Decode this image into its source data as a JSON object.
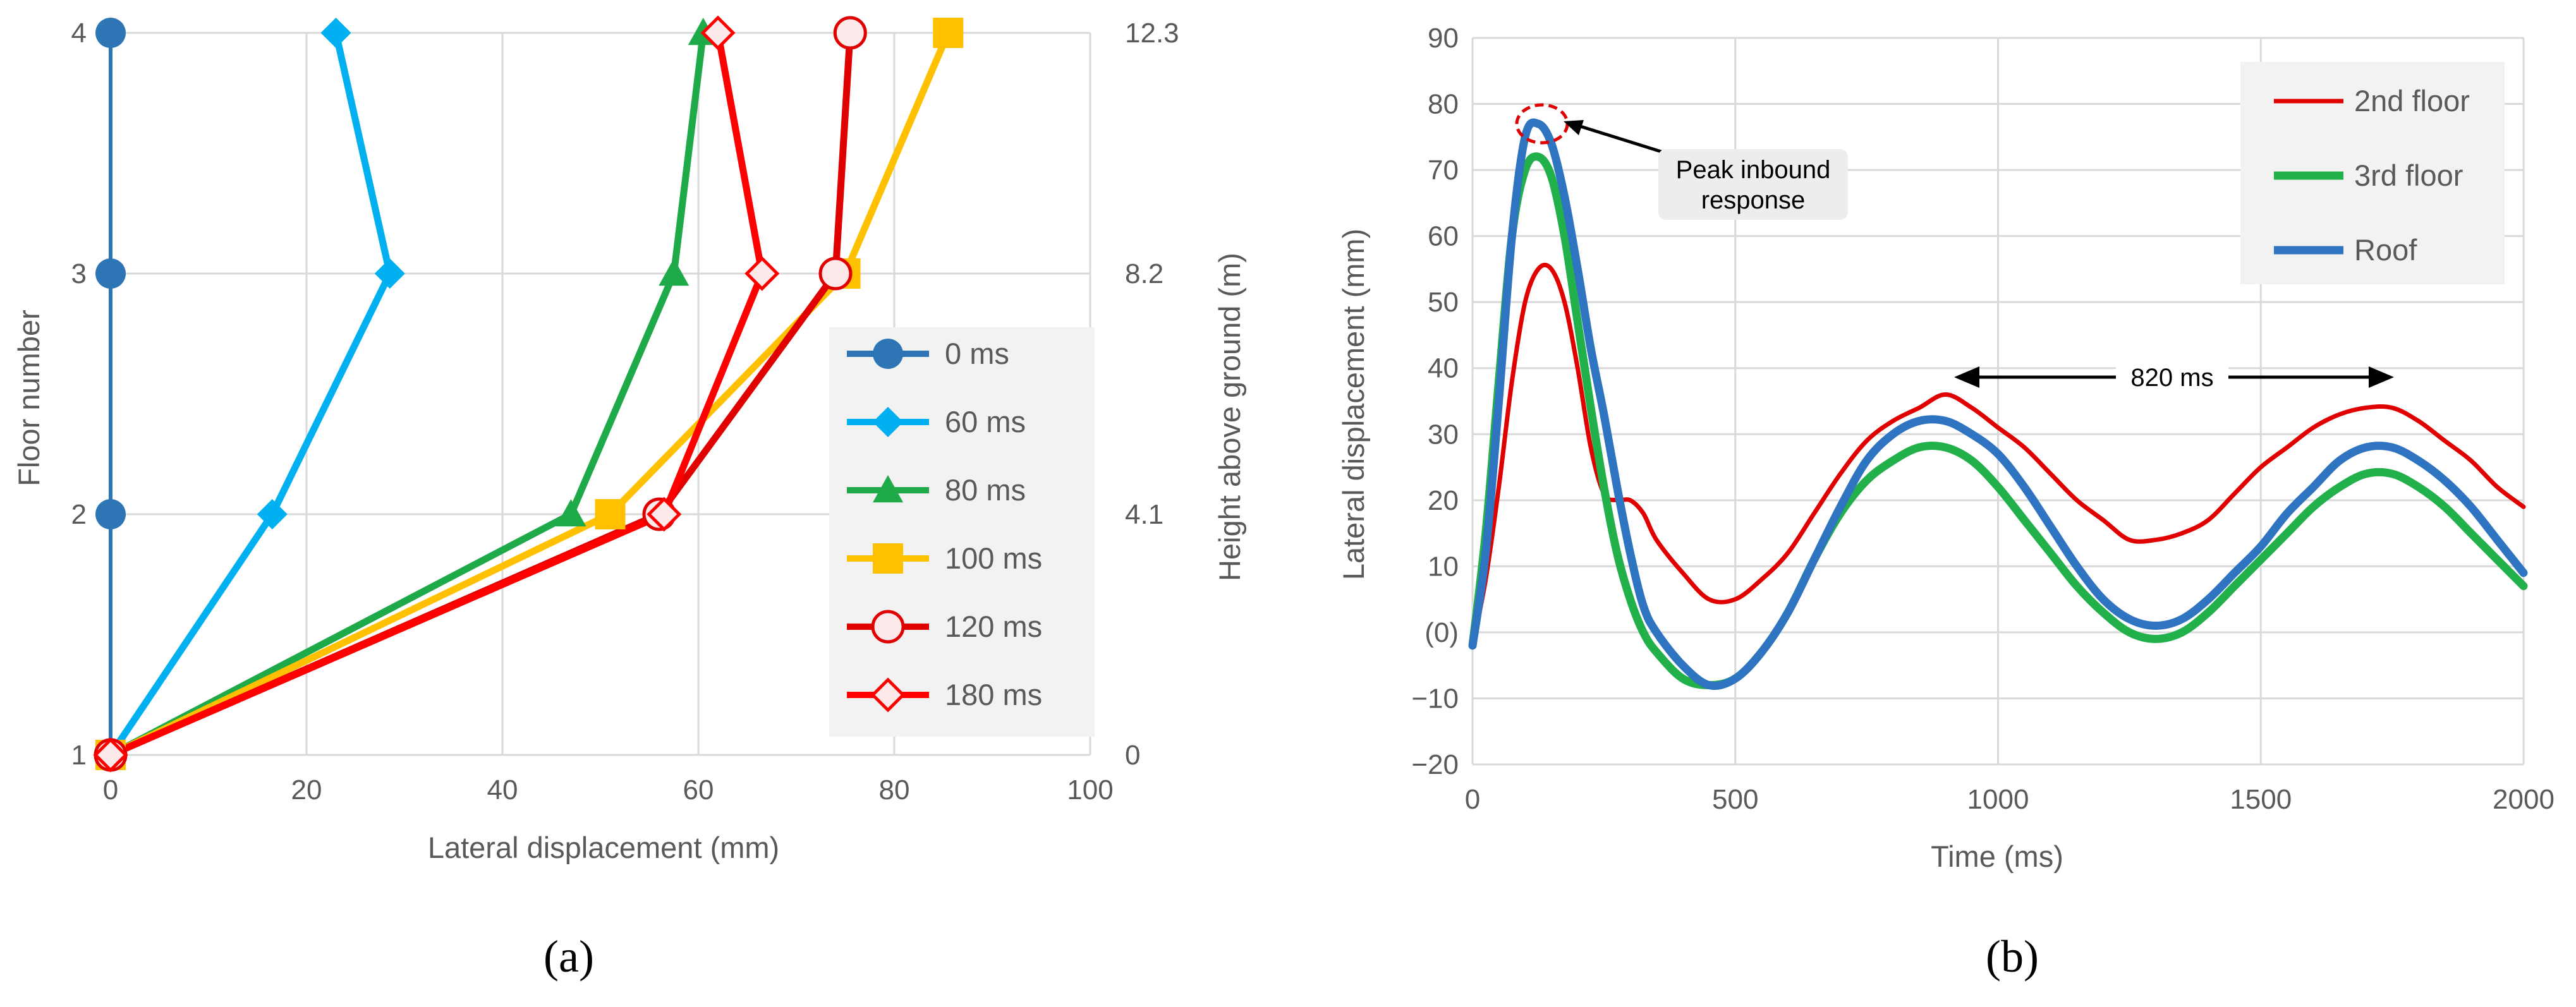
{
  "chart_data": [
    {
      "panel": "(a)",
      "type": "line",
      "xlabel": "Lateral displacement (mm)",
      "ylabel": "Floor number",
      "ylabel_right": "Height above ground (m)",
      "xlim": [
        0,
        100
      ],
      "x_ticks": [
        "0",
        "20",
        "40",
        "60",
        "80",
        "100"
      ],
      "y_ticks": [
        "1",
        "2",
        "3",
        "4"
      ],
      "y_ticks_right": [
        "0",
        "4.1",
        "8.2",
        "12.3"
      ],
      "ylim": [
        1,
        4
      ],
      "legend_position": "right",
      "categories": [
        1,
        2,
        3,
        4
      ],
      "series": [
        {
          "name": "0 ms",
          "color": "#2e75b6",
          "marker": "circle",
          "x": [
            0,
            0,
            0,
            0
          ],
          "y": [
            1,
            2,
            3,
            4
          ]
        },
        {
          "name": "60 ms",
          "color": "#00b0f0",
          "marker": "diamond",
          "x": [
            0,
            16.5,
            28.5,
            23
          ],
          "y": [
            1,
            2,
            3,
            4
          ]
        },
        {
          "name": "80 ms",
          "color": "#1faa4a",
          "marker": "triangle",
          "x": [
            0,
            47,
            57.5,
            60.5
          ],
          "y": [
            1,
            2,
            3,
            4
          ]
        },
        {
          "name": "100 ms",
          "color": "#ffc000",
          "marker": "square",
          "x": [
            0,
            51,
            75,
            85.5
          ],
          "y": [
            1,
            2,
            3,
            4
          ]
        },
        {
          "name": "120 ms",
          "color": "#e00000",
          "marker": "open-circle",
          "x": [
            0,
            56,
            74,
            75.5
          ],
          "y": [
            1,
            2,
            3,
            4
          ]
        },
        {
          "name": "180 ms",
          "color": "#ff0000",
          "marker": "open-diamond",
          "x": [
            0,
            56.5,
            66.5,
            62
          ],
          "y": [
            1,
            2,
            3,
            4
          ]
        }
      ]
    },
    {
      "panel": "(b)",
      "type": "line",
      "xlabel": "Time (ms)",
      "ylabel": "Lateral displacement (mm)",
      "xlim": [
        0,
        2000
      ],
      "ylim": [
        -20,
        90
      ],
      "x_ticks": [
        "0",
        "500",
        "1000",
        "1500",
        "2000"
      ],
      "y_ticks": [
        "−20",
        "−10",
        "(0)",
        "10",
        "20",
        "30",
        "40",
        "50",
        "60",
        "70",
        "80",
        "90"
      ],
      "legend_position": "top-right",
      "annotations": [
        {
          "text_line1": "Peak inbound",
          "text_line2": "response",
          "target_x": 130,
          "target_y": 77
        },
        {
          "text": "820 ms",
          "x_start": 920,
          "x_end": 1760,
          "y": 39
        }
      ],
      "series": [
        {
          "name": "2nd floor",
          "color": "#e00000",
          "x": [
            0,
            25,
            50,
            75,
            100,
            125,
            150,
            175,
            200,
            225,
            250,
            275,
            300,
            325,
            350,
            400,
            450,
            500,
            550,
            600,
            650,
            700,
            750,
            800,
            850,
            900,
            950,
            1000,
            1050,
            1100,
            1150,
            1200,
            1250,
            1300,
            1350,
            1400,
            1450,
            1500,
            1550,
            1600,
            1650,
            1700,
            1750,
            1800,
            1850,
            1900,
            1950,
            2000
          ],
          "y": [
            -2,
            8,
            22,
            38,
            50,
            55,
            55,
            50,
            40,
            28,
            21,
            20,
            20,
            18,
            14,
            9,
            5,
            5,
            8,
            12,
            18,
            24,
            29,
            32,
            34,
            36,
            34,
            31,
            28,
            24,
            20,
            17,
            14,
            14,
            15,
            17,
            21,
            25,
            28,
            31,
            33,
            34,
            34,
            32,
            29,
            26,
            22,
            19
          ]
        },
        {
          "name": "3rd floor",
          "color": "#22b04b",
          "x": [
            0,
            25,
            50,
            75,
            100,
            125,
            150,
            175,
            200,
            225,
            250,
            275,
            300,
            325,
            350,
            400,
            450,
            500,
            550,
            600,
            650,
            700,
            750,
            800,
            850,
            900,
            950,
            1000,
            1050,
            1100,
            1150,
            1200,
            1250,
            1300,
            1350,
            1400,
            1450,
            1500,
            1550,
            1600,
            1650,
            1700,
            1750,
            1800,
            1850,
            1900,
            1950,
            2000
          ],
          "y": [
            -2,
            15,
            38,
            60,
            70,
            72,
            69,
            60,
            47,
            34,
            22,
            12,
            5,
            0,
            -3,
            -7,
            -8,
            -7,
            -3,
            3,
            11,
            18,
            23,
            26,
            28,
            28,
            26,
            22,
            17,
            12,
            7,
            3,
            0,
            -1,
            0,
            3,
            7,
            11,
            15,
            19,
            22,
            24,
            24,
            22,
            19,
            15,
            11,
            7
          ]
        },
        {
          "name": "Roof",
          "color": "#2f74c0",
          "x": [
            0,
            25,
            50,
            75,
            100,
            125,
            150,
            175,
            200,
            225,
            250,
            275,
            300,
            325,
            350,
            400,
            450,
            500,
            550,
            600,
            650,
            700,
            750,
            800,
            850,
            900,
            950,
            1000,
            1050,
            1100,
            1150,
            1200,
            1250,
            1300,
            1350,
            1400,
            1450,
            1500,
            1550,
            1600,
            1650,
            1700,
            1750,
            1800,
            1850,
            1900,
            1950,
            2000
          ],
          "y": [
            -2,
            12,
            35,
            60,
            75,
            77,
            74,
            66,
            55,
            43,
            33,
            22,
            12,
            4,
            0,
            -5,
            -8,
            -7,
            -3,
            3,
            11,
            19,
            26,
            30,
            32,
            32,
            30,
            27,
            22,
            16,
            10,
            5,
            2,
            1,
            2,
            5,
            9,
            13,
            18,
            22,
            26,
            28,
            28,
            26,
            23,
            19,
            14,
            9
          ]
        }
      ]
    }
  ]
}
